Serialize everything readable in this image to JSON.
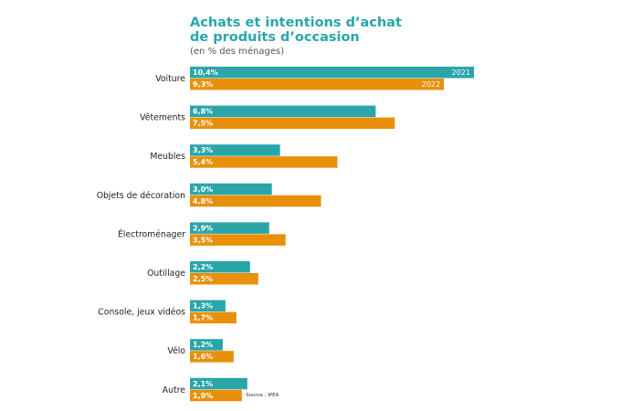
{
  "chart_data": {
    "type": "bar",
    "orientation": "horizontal",
    "title_line1": "Achats et intentions d’achat",
    "title_line2": "de produits d’occasion",
    "subtitle": "(en % des ménages)",
    "categories": [
      "Voiture",
      "Vêtements",
      "Meubles",
      "Objets de décoration",
      "Électroménager",
      "Outillage",
      "Console, jeux vidéos",
      "Vélo",
      "Autre"
    ],
    "series": [
      {
        "name": "2021",
        "color": "#2aa6a9",
        "values": [
          10.4,
          6.8,
          3.3,
          3.0,
          2.9,
          2.2,
          1.3,
          1.2,
          2.1
        ],
        "labels": [
          "10,4%",
          "6,8%",
          "3,3%",
          "3,0%",
          "2,9%",
          "2,2%",
          "1,3%",
          "1,2%",
          "2,1%"
        ]
      },
      {
        "name": "2022",
        "color": "#e8900a",
        "values": [
          9.3,
          7.5,
          5.4,
          4.8,
          3.5,
          2.5,
          1.7,
          1.6,
          1.9
        ],
        "labels": [
          "9,3%",
          "7,5%",
          "5,4%",
          "4,8%",
          "3,5%",
          "2,5%",
          "1,7%",
          "1,6%",
          "1,9%"
        ]
      }
    ],
    "source": "Source : IPEA",
    "grid": false,
    "legend": "inline on first bars"
  }
}
